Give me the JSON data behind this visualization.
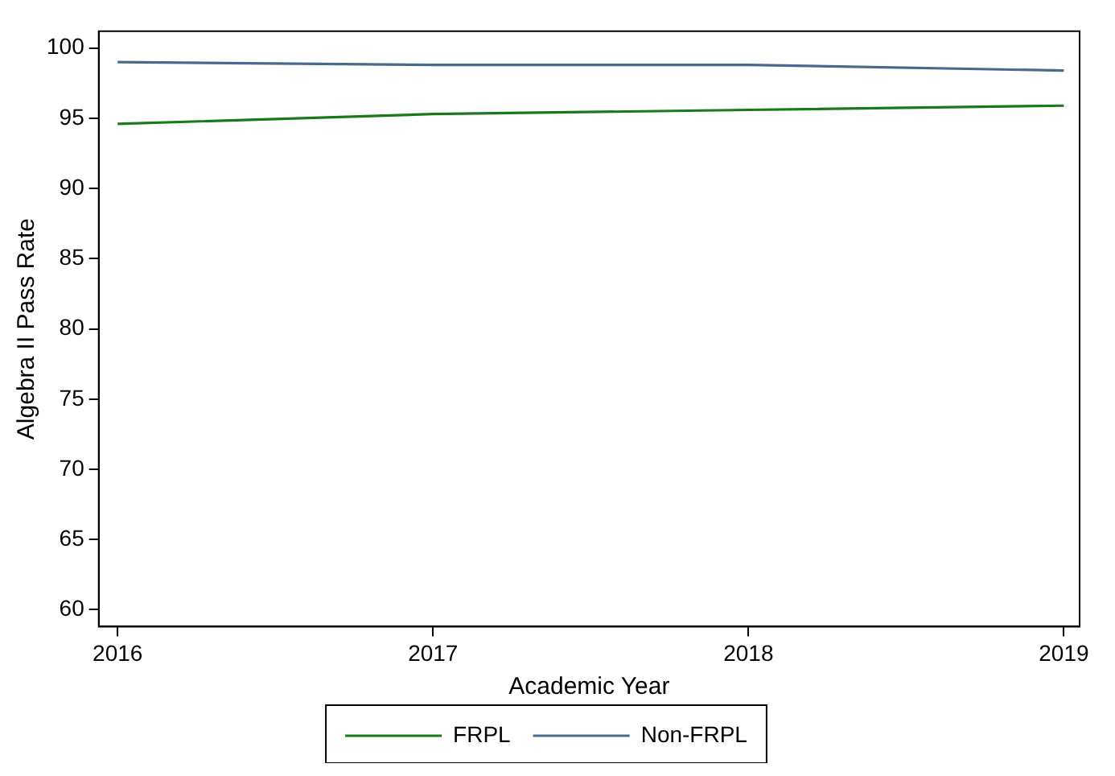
{
  "chart_data": {
    "type": "line",
    "xlabel": "Academic Year",
    "ylabel": "Algebra II Pass Rate",
    "x": [
      2016,
      2017,
      2018,
      2019
    ],
    "series": [
      {
        "name": "FRPL",
        "color": "#1a7a1a",
        "values": [
          94.6,
          95.3,
          95.6,
          95.9
        ]
      },
      {
        "name": "Non-FRPL",
        "color": "#4a6a8c",
        "values": [
          99.0,
          98.8,
          98.8,
          98.4
        ]
      }
    ],
    "xlim": [
      2015.94,
      2019.05
    ],
    "xticks": [
      2016,
      2017,
      2018,
      2019
    ],
    "ylim": [
      58.8,
      101.2
    ],
    "yticks": [
      60,
      65,
      70,
      75,
      80,
      85,
      90,
      95,
      100
    ],
    "grid": false,
    "legend": "bottom",
    "marker": "none",
    "line_style": "solid"
  }
}
